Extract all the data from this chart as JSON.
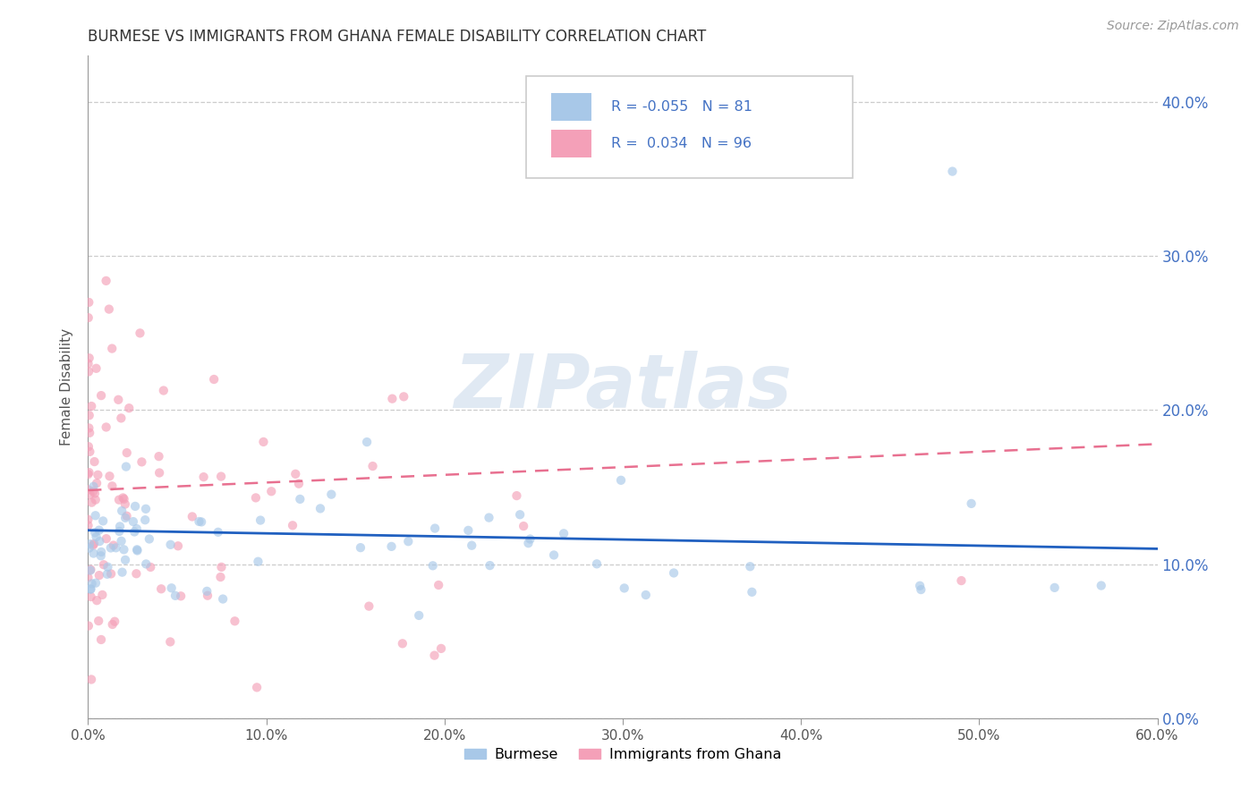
{
  "title": "BURMESE VS IMMIGRANTS FROM GHANA FEMALE DISABILITY CORRELATION CHART",
  "source": "Source: ZipAtlas.com",
  "ylabel_label": "Female Disability",
  "legend_label1": "Burmese",
  "legend_label2": "Immigrants from Ghana",
  "R1": -0.055,
  "N1": 81,
  "R2": 0.034,
  "N2": 96,
  "color_blue": "#a8c8e8",
  "color_pink": "#f4a0b8",
  "line_blue": "#2060c0",
  "line_pink": "#e87090",
  "xlim": [
    0.0,
    0.6
  ],
  "ylim": [
    0.0,
    0.43
  ],
  "yticks": [
    0.0,
    0.1,
    0.2,
    0.3,
    0.4
  ],
  "xticks": [
    0.0,
    0.1,
    0.2,
    0.3,
    0.4,
    0.5,
    0.6
  ]
}
